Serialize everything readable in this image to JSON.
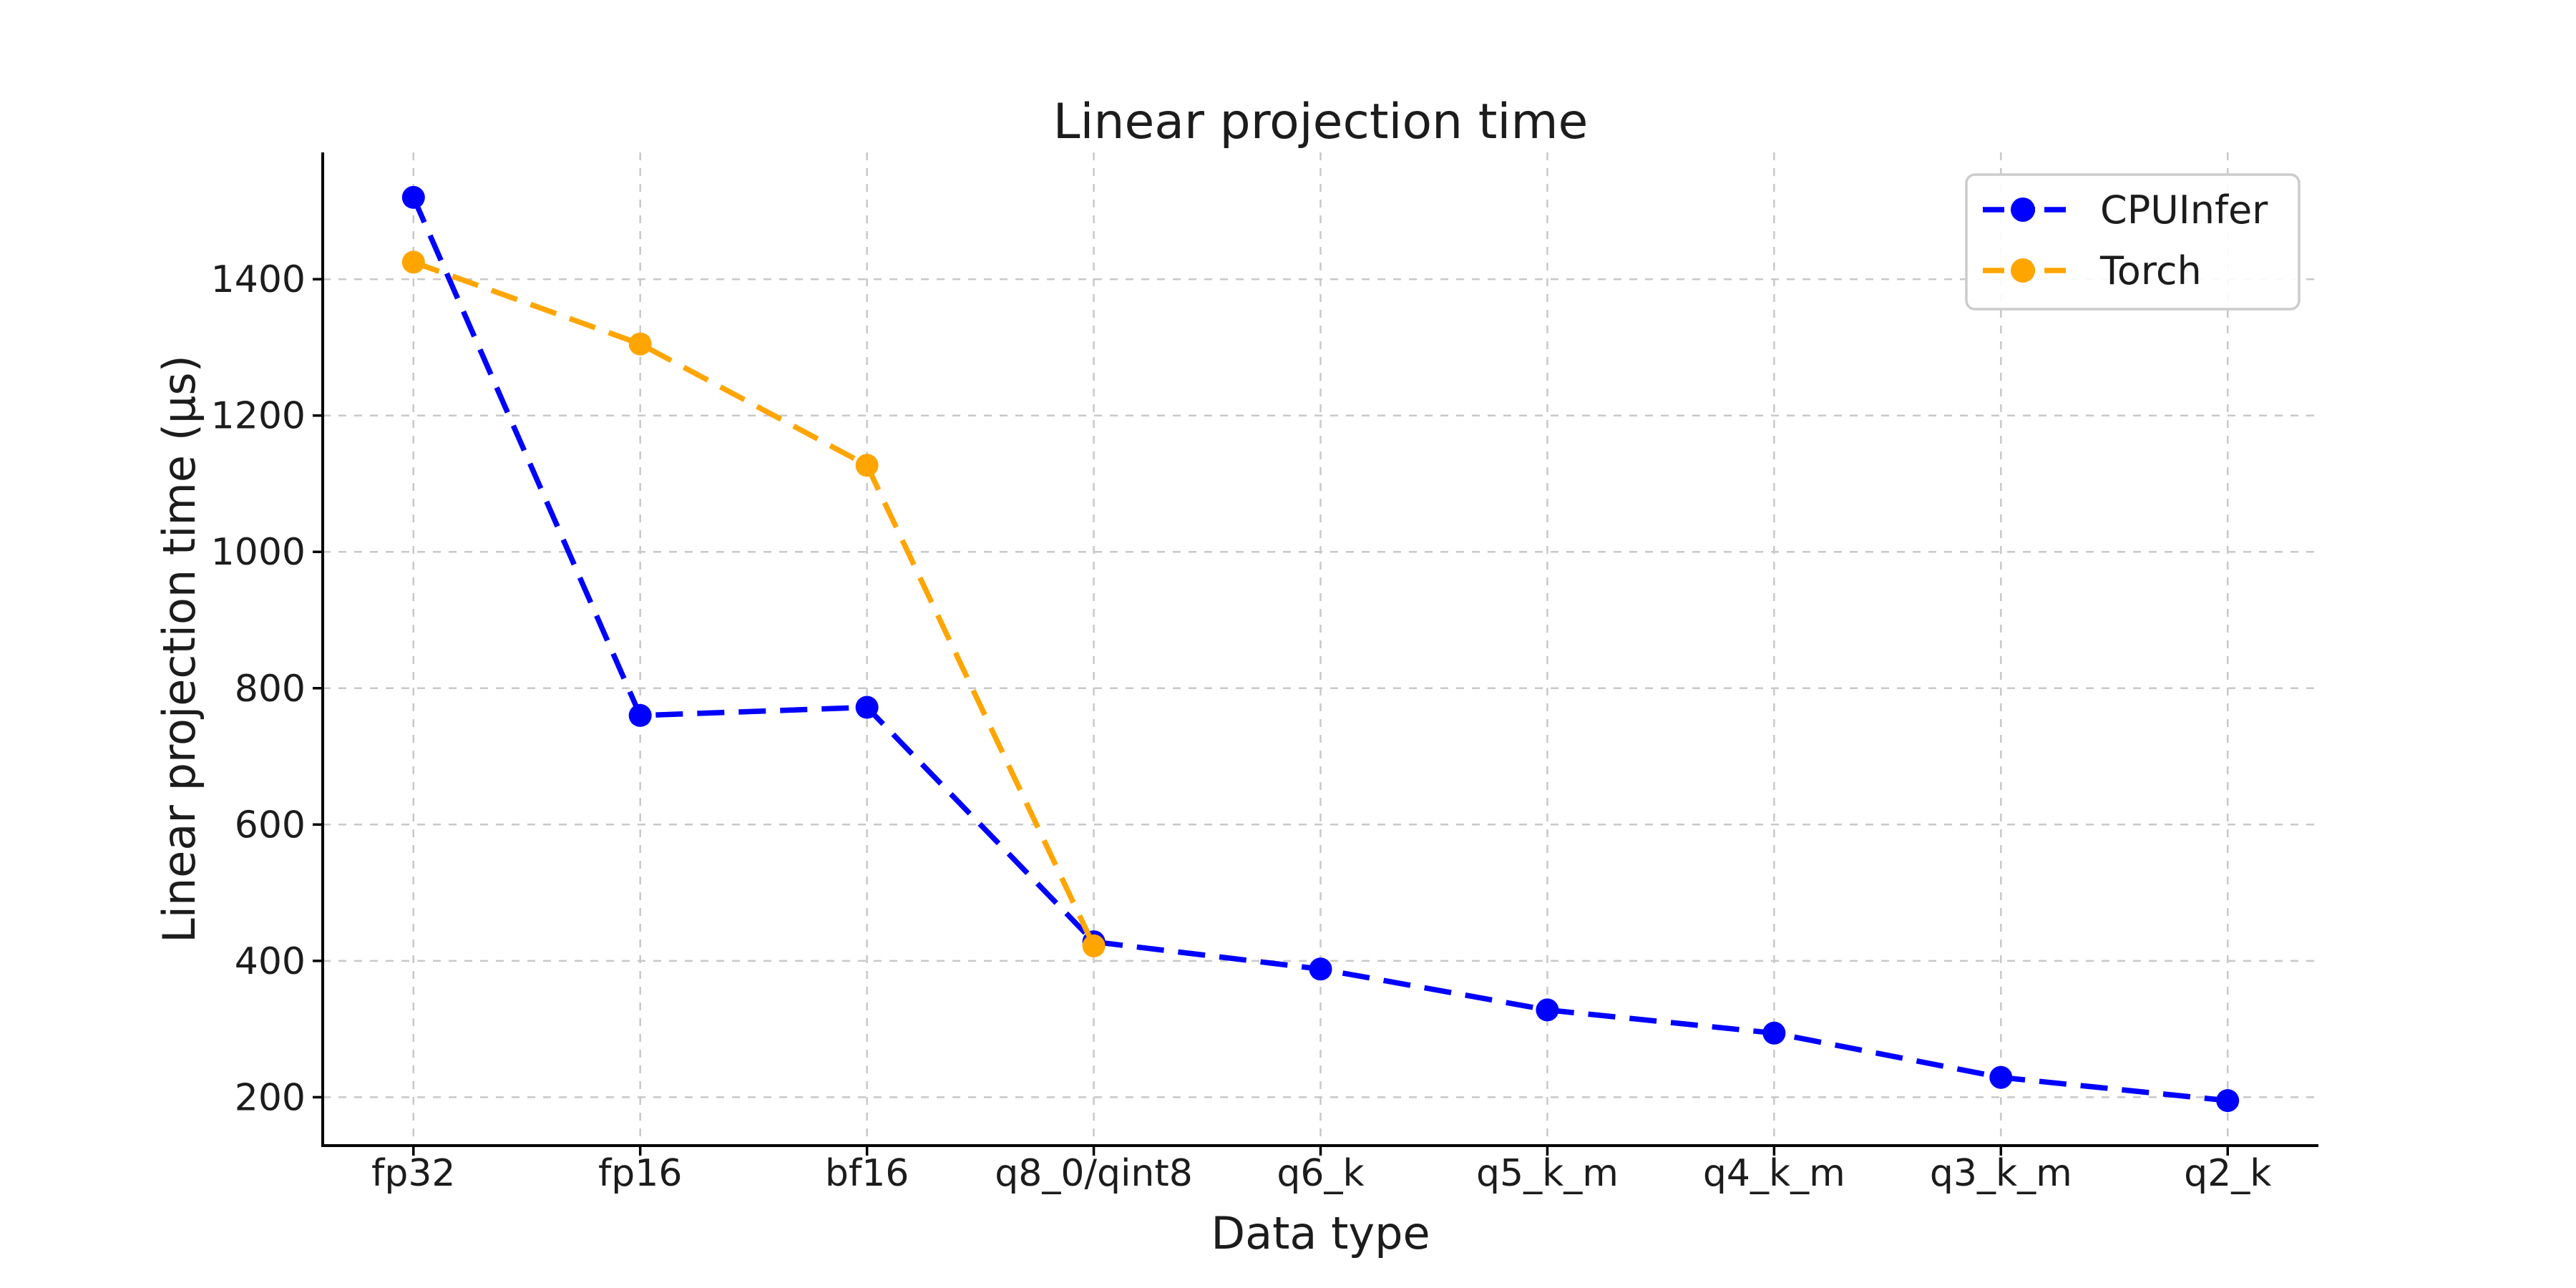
{
  "figure": {
    "background": "#ffffff",
    "text_color": "#1c1c1c",
    "grid_color": "#c8c8c8",
    "spine_color": "#000000",
    "legend_border_color": "#cccccc",
    "legend_background": "#ffffff"
  },
  "chart_data": {
    "type": "line",
    "title": "Linear projection time",
    "xlabel": "Data type",
    "ylabel": "Linear projection time (μs)",
    "categories": [
      "fp32",
      "fp16",
      "bf16",
      "q8_0/qint8",
      "q6_k",
      "q5_k_m",
      "q4_k_m",
      "q3_k_m",
      "q2_k"
    ],
    "yticks": [
      200,
      400,
      600,
      800,
      1000,
      1200,
      1400
    ],
    "ylim": [
      129,
      1586
    ],
    "grid": true,
    "grid_style": "dashed",
    "line_style": "dashed",
    "marker": "circle",
    "legend_position": "upper right",
    "series": [
      {
        "name": "CPUInfer",
        "color": "#0000ff",
        "values": [
          1520,
          760,
          772,
          428,
          388,
          328,
          294,
          229,
          195
        ]
      },
      {
        "name": "Torch",
        "color": "#ffa500",
        "values": [
          1425,
          1305,
          1127,
          422
        ]
      }
    ]
  }
}
